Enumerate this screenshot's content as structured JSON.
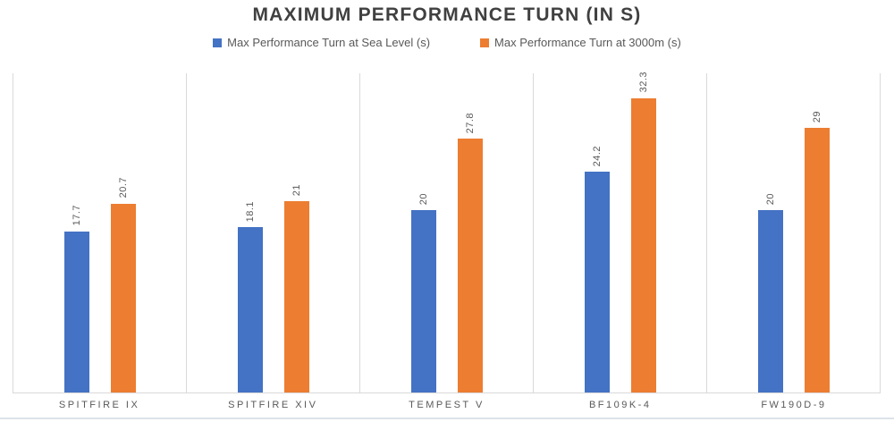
{
  "chart_data": {
    "type": "bar",
    "title": "MAXIMUM PERFORMANCE TURN (IN S)",
    "categories": [
      "SPITFIRE IX",
      "SPITFIRE XIV",
      "TEMPEST V",
      "BF109K-4",
      "FW190D-9"
    ],
    "series": [
      {
        "name": "Max Performance Turn at Sea Level (s)",
        "color": "#4472C4",
        "values": [
          17.7,
          18.1,
          20,
          24.2,
          20
        ],
        "labels": [
          "17.7",
          "18.1",
          "20",
          "24.2",
          "20"
        ]
      },
      {
        "name": "Max Performance Turn at 3000m (s)",
        "color": "#ED7D31",
        "values": [
          20.7,
          21,
          27.8,
          32.3,
          29
        ],
        "labels": [
          "20.7",
          "21",
          "27.8",
          "32.3",
          "29"
        ]
      }
    ],
    "xlabel": "",
    "ylabel": "",
    "ylim": [
      0,
      35
    ],
    "value_axis_visible": false,
    "data_labels": "rotated-vertical",
    "grid": "vertical-category-separators",
    "legend_position": "top",
    "colors": {
      "grid": "#d9d9d9",
      "title_text": "#404040",
      "label_text": "#595959"
    }
  }
}
